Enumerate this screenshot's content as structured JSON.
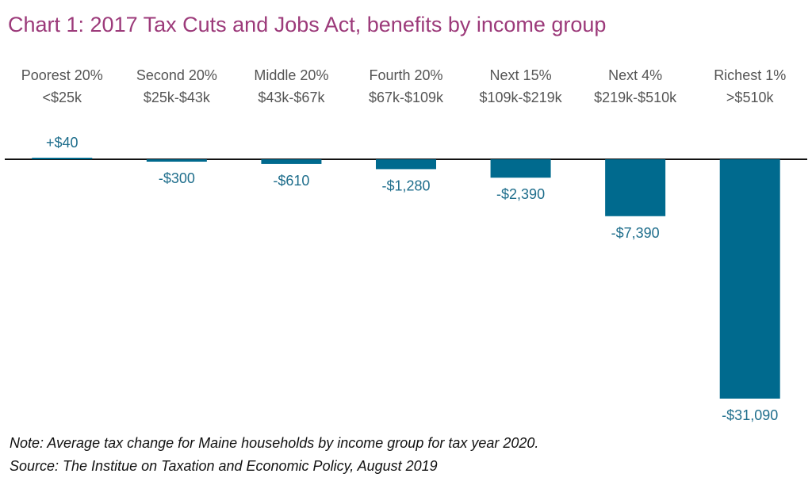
{
  "chart_data": {
    "type": "bar",
    "title": "Chart 1: 2017 Tax Cuts and Jobs Act, benefits by income group",
    "categories": [
      {
        "group": "Poorest 20%",
        "range": "<$25k"
      },
      {
        "group": "Second 20%",
        "range": "$25k-$43k"
      },
      {
        "group": "Middle 20%",
        "range": "$43k-$67k"
      },
      {
        "group": "Fourth 20%",
        "range": "$67k-$109k"
      },
      {
        "group": "Next 15%",
        "range": "$109k-$219k"
      },
      {
        "group": "Next 4%",
        "range": "$219k-$510k"
      },
      {
        "group": "Richest 1%",
        "range": ">$510k"
      }
    ],
    "values": [
      40,
      -300,
      -610,
      -1280,
      -2390,
      -7390,
      -31090
    ],
    "value_labels": [
      "+$40",
      "-$300",
      "-$610",
      "-$1,280",
      "-$2,390",
      "-$7,390",
      "-$31,090"
    ],
    "bar_color": "#006a8e",
    "label_color": "#1f6e8c",
    "title_color": "#9c3a7a",
    "grid": false
  },
  "notes": {
    "note": "Note: Average tax change for Maine households by income group for tax year 2020.",
    "source": "Source: The Institue on Taxation and Economic Policy, August 2019"
  }
}
